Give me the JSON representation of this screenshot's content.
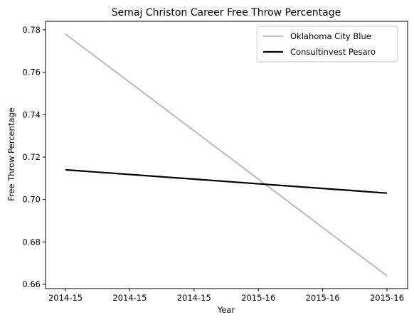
{
  "chart_data": {
    "type": "line",
    "title": "Semaj Christon Career Free Throw Percentage",
    "xlabel": "Year",
    "ylabel": "Free Throw Percentage",
    "x_ticks": [
      "2014-15",
      "2014-15",
      "2014-15",
      "2015-16",
      "2015-16",
      "2015-16"
    ],
    "x_endpoints": [
      "2014-15",
      "2015-16"
    ],
    "ylim": [
      0.658,
      0.784
    ],
    "y_ticks": [
      0.66,
      0.68,
      0.7,
      0.72,
      0.74,
      0.76,
      0.78
    ],
    "legend_position": "top-right",
    "grid": false,
    "series": [
      {
        "name": "Oklahoma City Blue",
        "values": [
          0.778,
          0.664
        ],
        "color": "#bfbfbf"
      },
      {
        "name": "Consultinvest Pesaro",
        "values": [
          0.714,
          0.703
        ],
        "color": "#000000"
      }
    ]
  }
}
